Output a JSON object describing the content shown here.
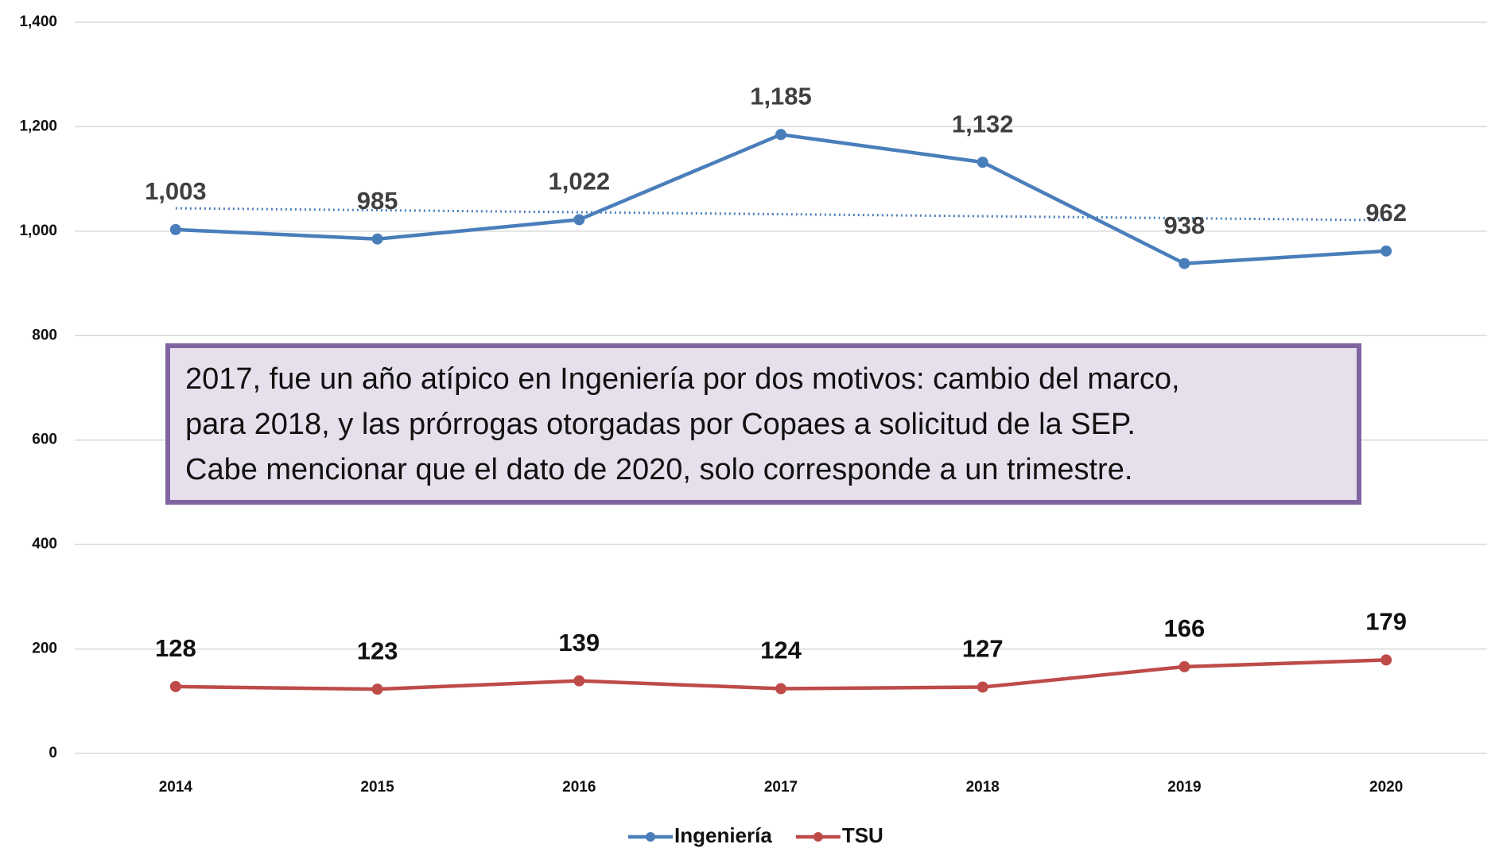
{
  "chart_data": {
    "type": "line",
    "categories": [
      "2014",
      "2015",
      "2016",
      "2017",
      "2018",
      "2019",
      "2020"
    ],
    "series": [
      {
        "name": "Ingeniería",
        "color": "#4a7ebb",
        "values": [
          1003,
          985,
          1022,
          1185,
          1132,
          938,
          962
        ],
        "value_labels": [
          "1,003",
          "985",
          "1,022",
          "1,185",
          "1,132",
          "938",
          "962"
        ],
        "trendline": true
      },
      {
        "name": "TSU",
        "color": "#be4b48",
        "values": [
          128,
          123,
          139,
          124,
          127,
          166,
          179
        ]
      }
    ],
    "ylim": [
      0,
      1400
    ],
    "yticks": [
      0,
      {
        "value": 200,
        "label": "200"
      },
      {
        "value": 400,
        "label": "400"
      },
      {
        "value": 600,
        "label": "600"
      },
      {
        "value": 800,
        "label": "800"
      },
      {
        "value": 1000,
        "label": "1,000"
      },
      {
        "value": 1200,
        "label": "1,200"
      },
      {
        "value": 1400,
        "label": "1,400"
      }
    ],
    "grid": true,
    "legend": "bottom",
    "annotation": [
      "2017, fue un año atípico en Ingeniería por dos motivos: cambio del marco,",
      "para 2018, y las prórrogas otorgadas por Copaes a solicitud de la SEP.",
      "Cabe mencionar que el dato de 2020, solo corresponde a un trimestre."
    ]
  }
}
